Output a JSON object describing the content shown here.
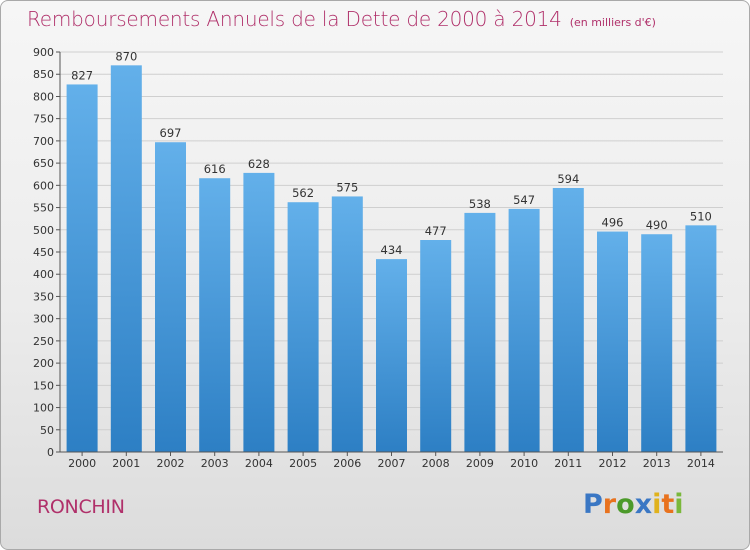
{
  "title": "Remboursements Annuels de la Dette de 2000 à 2014",
  "unit_note": "(en milliers d'€)",
  "commune": "RONCHIN",
  "logo": {
    "text": "Proxiti",
    "letter_colors": [
      "#3a77c4",
      "#e8721e",
      "#4c9a2a",
      "#3a77c4",
      "#e0b21d",
      "#e8721e",
      "#7ab83b"
    ]
  },
  "colors": {
    "title": "#b0306a",
    "bar_top": "#63b0ea",
    "bar_bottom": "#2d7fc4",
    "grid": "#cfcfcf",
    "axis": "#555555"
  },
  "chart_data": {
    "type": "bar",
    "categories": [
      "2000",
      "2001",
      "2002",
      "2003",
      "2004",
      "2005",
      "2006",
      "2007",
      "2008",
      "2009",
      "2010",
      "2011",
      "2012",
      "2013",
      "2014"
    ],
    "values": [
      827,
      870,
      697,
      616,
      628,
      562,
      575,
      434,
      477,
      538,
      547,
      594,
      496,
      490,
      510
    ],
    "ylim": [
      0,
      900
    ],
    "yticks": [
      0,
      50,
      100,
      150,
      200,
      250,
      300,
      350,
      400,
      450,
      500,
      550,
      600,
      650,
      700,
      750,
      800,
      850,
      900
    ],
    "grid": true,
    "data_labels": true
  }
}
